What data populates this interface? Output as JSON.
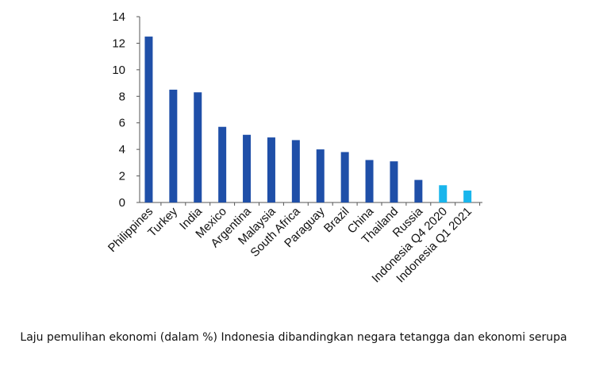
{
  "chart_data": {
    "type": "bar",
    "categories": [
      "Philippines",
      "Turkey",
      "India",
      "Mexico",
      "Argentina",
      "Malaysia",
      "South Africa",
      "Paraguay",
      "Brazil",
      "China",
      "Thailand",
      "Russia",
      "Indonesia Q4 2020",
      "Indonesia Q1 2021"
    ],
    "values": [
      12.5,
      8.5,
      8.3,
      5.7,
      5.1,
      4.9,
      4.7,
      4.0,
      3.8,
      3.2,
      3.1,
      1.7,
      1.3,
      0.9
    ],
    "bar_colors": [
      "#1f4fa8",
      "#1f4fa8",
      "#1f4fa8",
      "#1f4fa8",
      "#1f4fa8",
      "#1f4fa8",
      "#1f4fa8",
      "#1f4fa8",
      "#1f4fa8",
      "#1f4fa8",
      "#1f4fa8",
      "#1f4fa8",
      "#19b5ec",
      "#19b5ec"
    ],
    "ylim": [
      0,
      14
    ],
    "yticks": [
      0,
      2,
      4,
      6,
      8,
      10,
      12,
      14
    ],
    "grid": false,
    "legend": "none",
    "title": "",
    "xlabel": "",
    "ylabel": ""
  },
  "caption": "Laju pemulihan ekonomi (dalam %) Indonesia dibandingkan negara tetangga dan ekonomi serupa"
}
